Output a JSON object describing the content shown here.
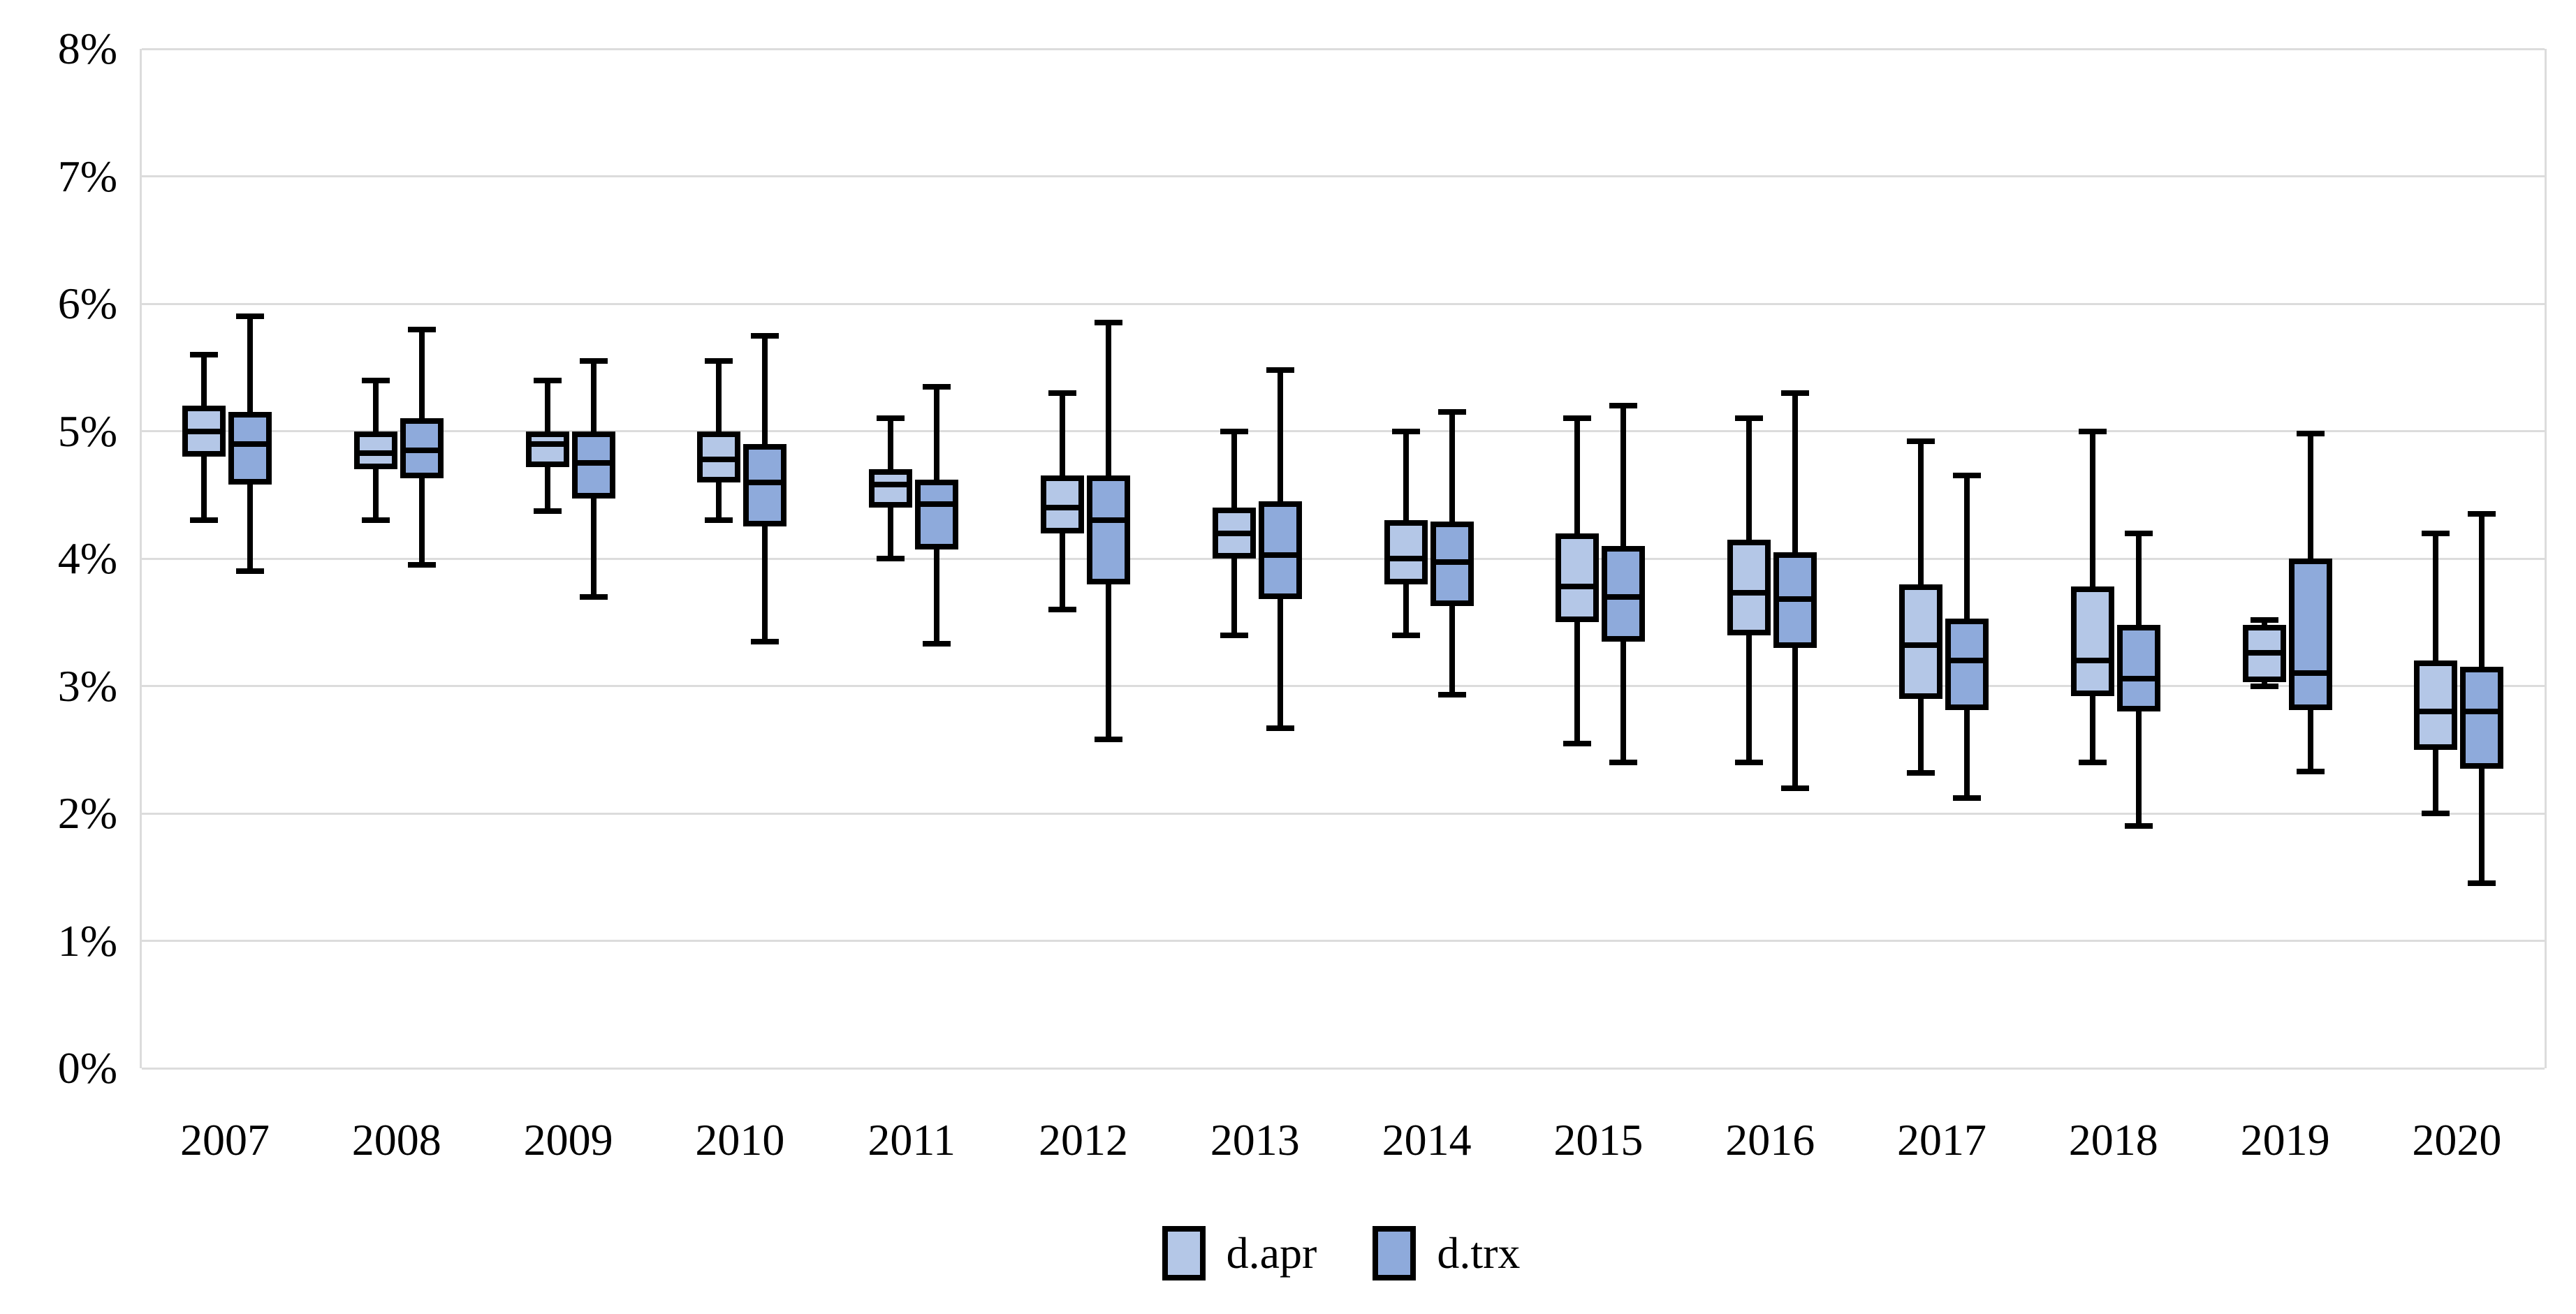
{
  "chart_data": {
    "type": "boxplot",
    "title": "",
    "orientation": "vertical",
    "x_categories": [
      "2007",
      "2008",
      "2009",
      "2010",
      "2011",
      "2012",
      "2013",
      "2014",
      "2015",
      "2016",
      "2017",
      "2018",
      "2019",
      "2020"
    ],
    "y_axis": {
      "min": 0,
      "max": 8,
      "tick_step": 1,
      "unit": "%",
      "tick_labels": [
        "0%",
        "1%",
        "2%",
        "3%",
        "4%",
        "5%",
        "6%",
        "7%",
        "8%"
      ],
      "grid": true
    },
    "legend": {
      "position": "bottom",
      "entries": [
        {
          "label": "d.apr",
          "fill": "#b4c7e7"
        },
        {
          "label": "d.trx",
          "fill": "#8eaadb"
        }
      ]
    },
    "style": {
      "gridline_color": "#dcdcdc",
      "box_border_color": "#000000",
      "background": "#ffffff"
    },
    "series": [
      {
        "name": "d.apr",
        "fill": "#b4c7e7",
        "boxes": [
          {
            "year": "2007",
            "min": 4.3,
            "q1": 4.8,
            "median": 5.0,
            "q3": 5.2,
            "max": 5.6
          },
          {
            "year": "2008",
            "min": 4.3,
            "q1": 4.7,
            "median": 4.83,
            "q3": 5.0,
            "max": 5.4
          },
          {
            "year": "2009",
            "min": 4.37,
            "q1": 4.72,
            "median": 4.9,
            "q3": 5.0,
            "max": 5.4
          },
          {
            "year": "2010",
            "min": 4.3,
            "q1": 4.6,
            "median": 4.78,
            "q3": 5.0,
            "max": 5.55
          },
          {
            "year": "2011",
            "min": 4.0,
            "q1": 4.4,
            "median": 4.58,
            "q3": 4.7,
            "max": 5.1
          },
          {
            "year": "2012",
            "min": 3.6,
            "q1": 4.2,
            "median": 4.4,
            "q3": 4.65,
            "max": 5.3
          },
          {
            "year": "2013",
            "min": 3.4,
            "q1": 4.0,
            "median": 4.2,
            "q3": 4.4,
            "max": 5.0
          },
          {
            "year": "2014",
            "min": 3.4,
            "q1": 3.8,
            "median": 4.0,
            "q3": 4.3,
            "max": 5.0
          },
          {
            "year": "2015",
            "min": 2.55,
            "q1": 3.5,
            "median": 3.78,
            "q3": 4.2,
            "max": 5.1
          },
          {
            "year": "2016",
            "min": 2.4,
            "q1": 3.4,
            "median": 3.73,
            "q3": 4.15,
            "max": 5.1
          },
          {
            "year": "2017",
            "min": 2.32,
            "q1": 2.9,
            "median": 3.32,
            "q3": 3.8,
            "max": 4.92
          },
          {
            "year": "2018",
            "min": 2.4,
            "q1": 2.92,
            "median": 3.2,
            "q3": 3.78,
            "max": 5.0
          },
          {
            "year": "2019",
            "min": 3.0,
            "q1": 3.03,
            "median": 3.26,
            "q3": 3.48,
            "max": 3.52
          },
          {
            "year": "2020",
            "min": 2.0,
            "q1": 2.5,
            "median": 2.8,
            "q3": 3.2,
            "max": 4.2
          }
        ]
      },
      {
        "name": "d.trx",
        "fill": "#8eaadb",
        "boxes": [
          {
            "year": "2007",
            "min": 3.9,
            "q1": 4.58,
            "median": 4.9,
            "q3": 5.15,
            "max": 5.9
          },
          {
            "year": "2008",
            "min": 3.95,
            "q1": 4.63,
            "median": 4.85,
            "q3": 5.1,
            "max": 5.8
          },
          {
            "year": "2009",
            "min": 3.7,
            "q1": 4.47,
            "median": 4.75,
            "q3": 5.0,
            "max": 5.55
          },
          {
            "year": "2010",
            "min": 3.35,
            "q1": 4.25,
            "median": 4.6,
            "q3": 4.9,
            "max": 5.75
          },
          {
            "year": "2011",
            "min": 3.33,
            "q1": 4.07,
            "median": 4.43,
            "q3": 4.62,
            "max": 5.35
          },
          {
            "year": "2012",
            "min": 2.58,
            "q1": 3.8,
            "median": 4.3,
            "q3": 4.65,
            "max": 5.85
          },
          {
            "year": "2013",
            "min": 2.67,
            "q1": 3.68,
            "median": 4.03,
            "q3": 4.45,
            "max": 5.48
          },
          {
            "year": "2014",
            "min": 2.93,
            "q1": 3.63,
            "median": 3.97,
            "q3": 4.29,
            "max": 5.15
          },
          {
            "year": "2015",
            "min": 2.4,
            "q1": 3.35,
            "median": 3.7,
            "q3": 4.1,
            "max": 5.2
          },
          {
            "year": "2016",
            "min": 2.2,
            "q1": 3.3,
            "median": 3.68,
            "q3": 4.05,
            "max": 5.3
          },
          {
            "year": "2017",
            "min": 2.12,
            "q1": 2.81,
            "median": 3.2,
            "q3": 3.53,
            "max": 4.65
          },
          {
            "year": "2018",
            "min": 1.9,
            "q1": 2.8,
            "median": 3.06,
            "q3": 3.48,
            "max": 4.2
          },
          {
            "year": "2019",
            "min": 2.33,
            "q1": 2.81,
            "median": 3.1,
            "q3": 4.0,
            "max": 4.98
          },
          {
            "year": "2020",
            "min": 1.45,
            "q1": 2.35,
            "median": 2.8,
            "q3": 3.15,
            "max": 4.35
          }
        ]
      }
    ]
  }
}
